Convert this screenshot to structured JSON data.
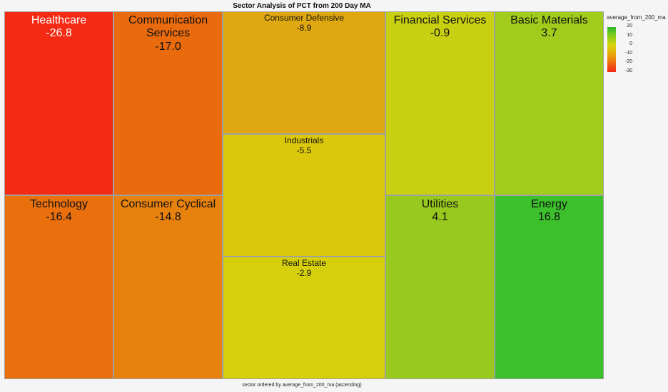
{
  "chart_data": {
    "type": "treemap",
    "title": "Sector Analysis of PCT from 200 Day MA",
    "footer": "sector ordered by average_from_200_ma (ascending)",
    "legend": {
      "title": "average_from_200_ma",
      "ticks": [
        "20",
        "10",
        "0",
        "-10",
        "-20",
        "-30"
      ],
      "range": [
        -30,
        20
      ],
      "colors": [
        "#2cb82c",
        "#88cc1c",
        "#d8d40c",
        "#e8a80c",
        "#ee6a10",
        "#f22818"
      ]
    },
    "series": [
      {
        "name": "Healthcare",
        "value": -26.8,
        "label": "-26.8",
        "color": "#f52a14"
      },
      {
        "name": "Communication Services",
        "value": -17.0,
        "label": "-17.0",
        "color": "#ea6a0e"
      },
      {
        "name": "Technology",
        "value": -16.4,
        "label": "-16.4",
        "color": "#ea700e"
      },
      {
        "name": "Consumer Cyclical",
        "value": -14.8,
        "label": "-14.8",
        "color": "#e8820f"
      },
      {
        "name": "Consumer Defensive",
        "value": -8.9,
        "label": "-8.9",
        "color": "#e0a810"
      },
      {
        "name": "Industrials",
        "value": -5.5,
        "label": "-5.5",
        "color": "#dcc80a"
      },
      {
        "name": "Real Estate",
        "value": -2.9,
        "label": "-2.9",
        "color": "#d6cf0c"
      },
      {
        "name": "Financial Services",
        "value": -0.9,
        "label": "-0.9",
        "color": "#c9d012"
      },
      {
        "name": "Basic Materials",
        "value": 3.7,
        "label": "3.7",
        "color": "#a2cc1c"
      },
      {
        "name": "Utilities",
        "value": 4.1,
        "label": "4.1",
        "color": "#98c91e"
      },
      {
        "name": "Energy",
        "value": 16.8,
        "label": "16.8",
        "color": "#3cc02c"
      }
    ]
  }
}
